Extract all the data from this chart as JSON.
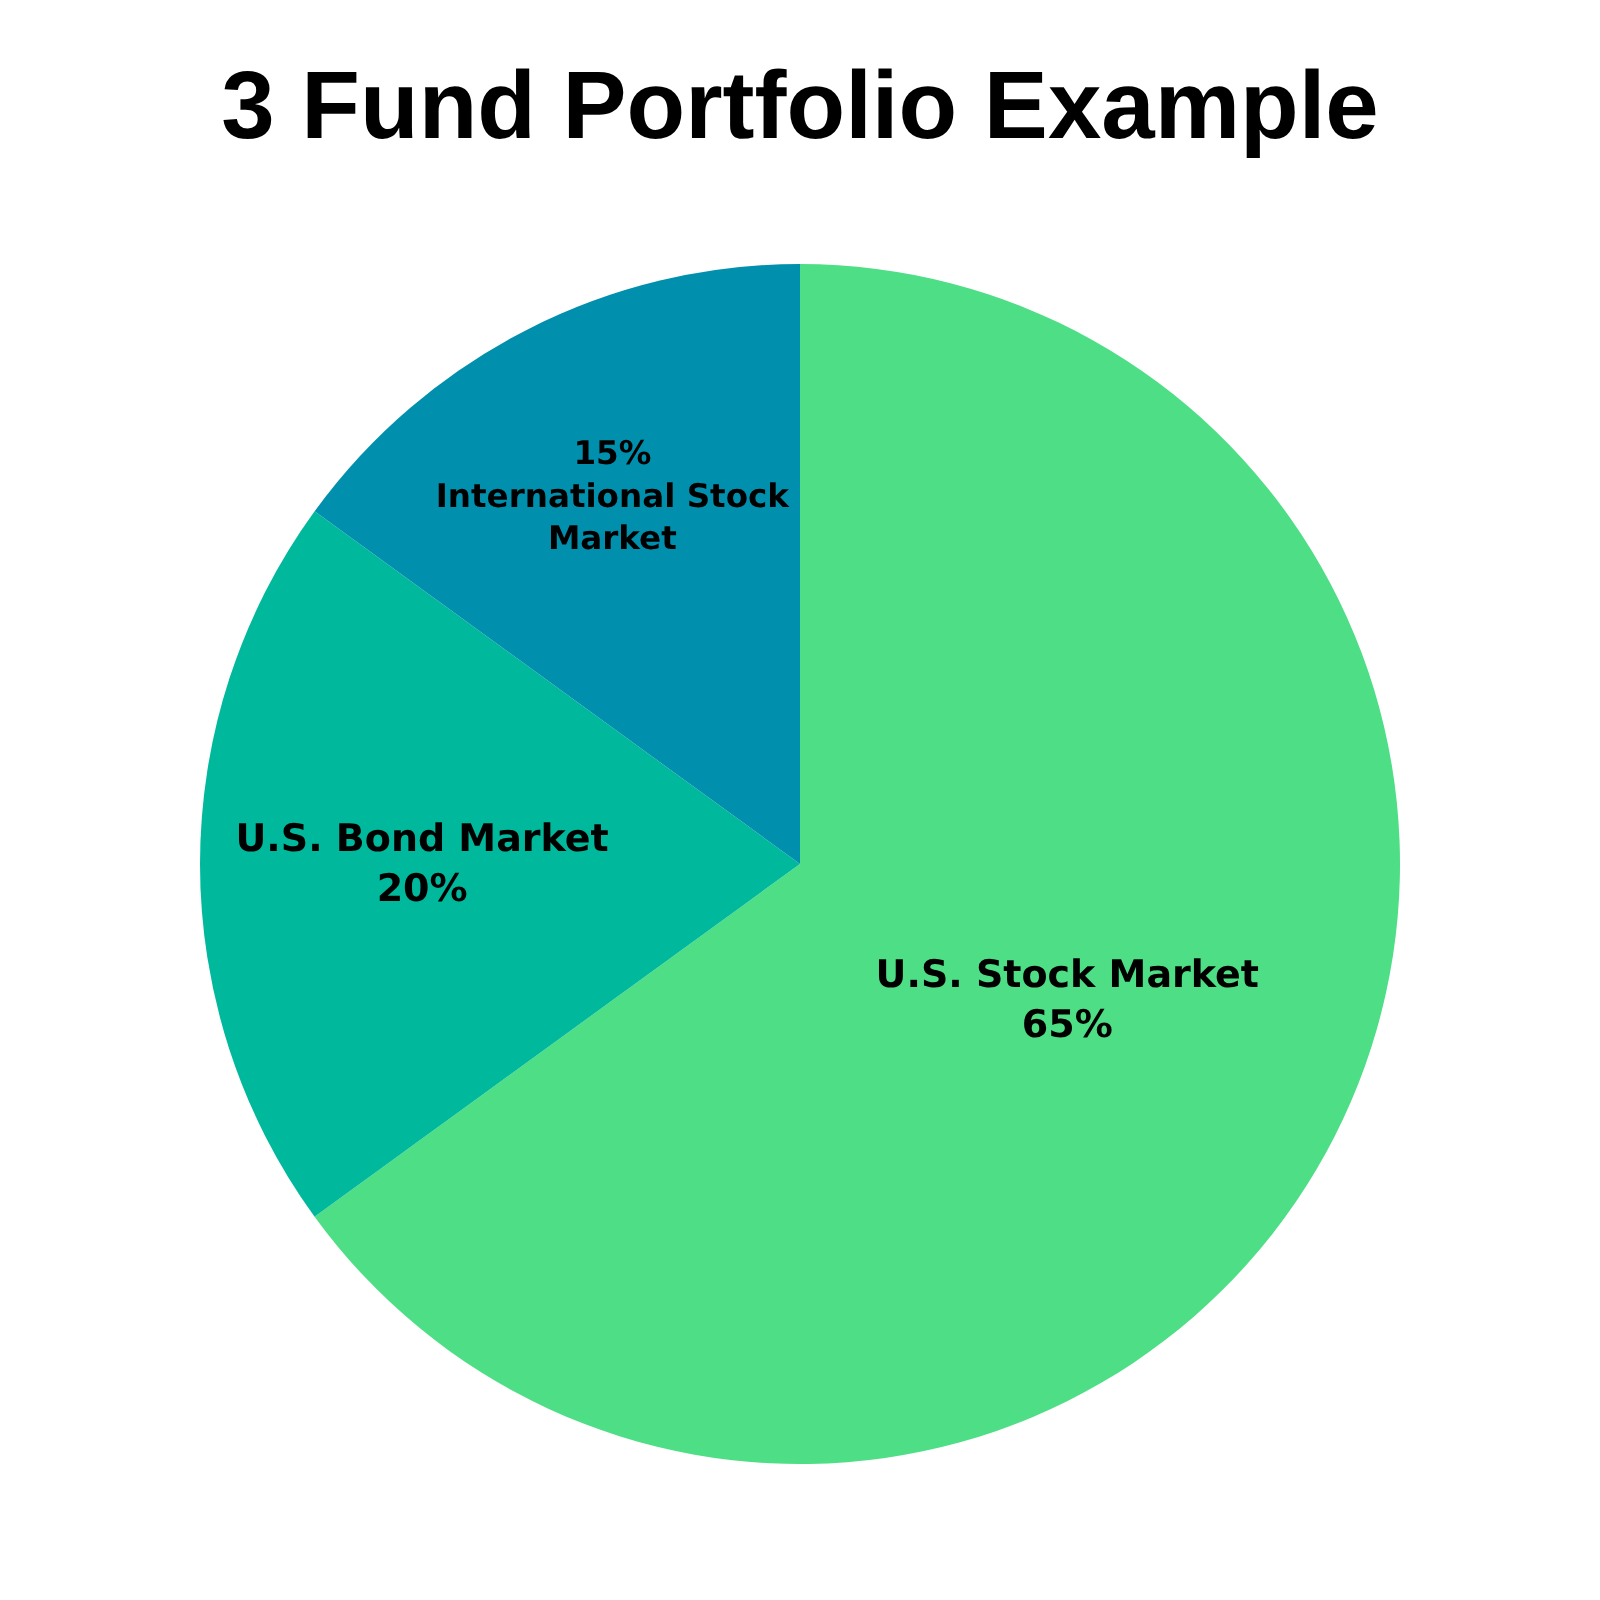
{
  "chart_data": {
    "type": "pie",
    "title": "3 Fund Portfolio Example",
    "categories": [
      "U.S. Stock Market",
      "U.S. Bond Market",
      "International Stock Market"
    ],
    "values": [
      65,
      20,
      15
    ],
    "colors": [
      "#4ede85",
      "#00b99c",
      "#0090ad"
    ],
    "value_labels": [
      "65%",
      "20%",
      "15%"
    ],
    "legend": false
  }
}
